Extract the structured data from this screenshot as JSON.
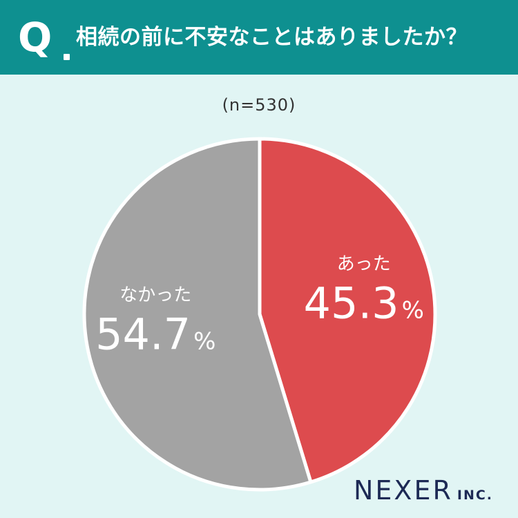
{
  "header": {
    "q_label": "Q",
    "question": "相続の前に不安なことはありましたか？"
  },
  "sample_size": "(n=530)",
  "chart_data": {
    "type": "pie",
    "title": "相続の前に不安なことはありましたか？",
    "n": 530,
    "slices": [
      {
        "label": "あった",
        "value": 45.3,
        "display": "45.3",
        "unit": "%",
        "color": "#dd4b4e"
      },
      {
        "label": "なかった",
        "value": 54.7,
        "display": "54.7",
        "unit": "%",
        "color": "#a3a3a3"
      }
    ],
    "start": "12 o'clock",
    "direction": "clockwise",
    "separator_color": "#ffffff"
  },
  "logo": {
    "main": "NEXER",
    "sub": "INC."
  },
  "colors": {
    "header_bg": "#0e9090",
    "background": "#e1f5f4",
    "label_text": "#ffffff",
    "logo": "#1d2a55"
  }
}
